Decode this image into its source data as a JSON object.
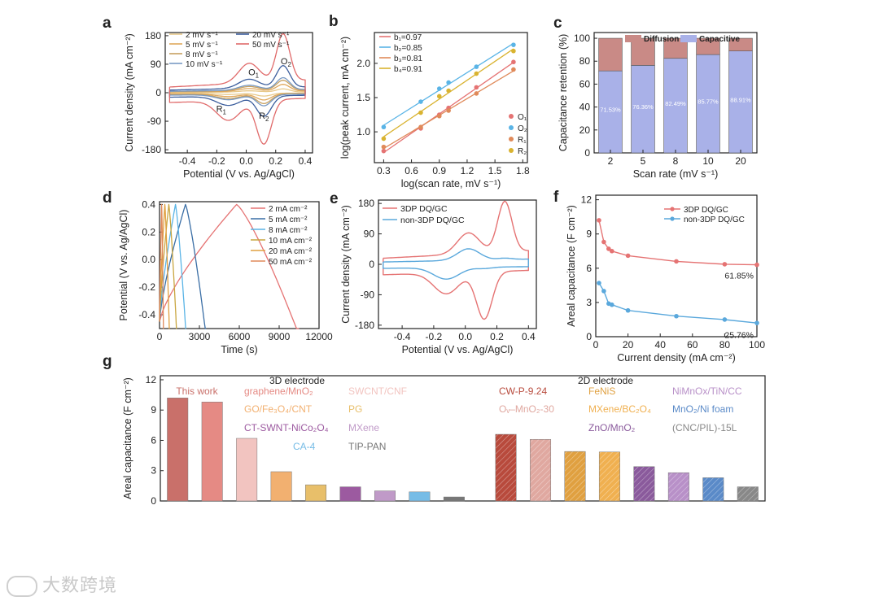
{
  "colors": {
    "axis": "#222222",
    "cv_scan": [
      "#e8c98a",
      "#e0a85c",
      "#c6a060",
      "#7a9ac4",
      "#3d5f9e",
      "#e06a6a"
    ],
    "b_fit": [
      "#e57373",
      "#5ab4e6",
      "#e08a5a",
      "#d9b330"
    ],
    "gcd": [
      "#e57373",
      "#3a6ea5",
      "#5ab4e6",
      "#c9a640",
      "#e0a040",
      "#e08a5a"
    ],
    "diffusion": "#c98a86",
    "capacitive": "#a9b1e8",
    "dq3d": "#e57373",
    "nondq": "#5aa8dc"
  },
  "watermark": "大数跨境",
  "chart_data": [
    {
      "panel": "a",
      "type": "line",
      "xlabel": "Potential (V vs. Ag/AgCl)",
      "ylabel": "Current density (mA cm⁻²)",
      "xlim": [
        -0.55,
        0.45
      ],
      "ylim": [
        -190,
        190
      ],
      "xticks": [
        "-0.4",
        "-0.2",
        "0.0",
        "0.2",
        "0.4"
      ],
      "xtick_values": [
        -0.4,
        -0.2,
        0,
        0.2,
        0.4
      ],
      "yticks": [
        "180",
        "90",
        "0",
        "-90",
        "-180"
      ],
      "ytick_values": [
        180,
        90,
        0,
        -90,
        -180
      ],
      "legend": [
        "2 mV s⁻¹",
        "5 mV s⁻¹",
        "8 mV s⁻¹",
        "10 mV s⁻¹",
        "20 mV s⁻¹",
        "50 mV s⁻¹"
      ],
      "scan_rates": [
        2,
        5,
        8,
        10,
        20,
        50
      ],
      "peaks": {
        "O1_x": 0.05,
        "O2_x": 0.25,
        "R1_x": -0.12,
        "R2_x": 0.12
      },
      "annotations": [
        "O1",
        "O2",
        "R1",
        "R2"
      ]
    },
    {
      "panel": "b",
      "type": "scatter",
      "xlabel": "log(scan rate, mV s⁻¹)",
      "ylabel": "log(peak current, mA cm⁻²)",
      "xlim": [
        0.2,
        1.85
      ],
      "ylim": [
        0.55,
        2.45
      ],
      "xticks": [
        "0.3",
        "0.6",
        "0.9",
        "1.2",
        "1.5",
        "1.8"
      ],
      "xtick_values": [
        0.3,
        0.6,
        0.9,
        1.2,
        1.5,
        1.8
      ],
      "yticks": [
        "1.0",
        "1.5",
        "2.0"
      ],
      "ytick_values": [
        1.0,
        1.5,
        2.0
      ],
      "x": [
        0.3,
        0.7,
        0.9,
        1.0,
        1.3,
        1.7
      ],
      "slopes": [
        "b₁=0.97",
        "b₂=0.85",
        "b₃=0.81",
        "b₄=0.91"
      ],
      "series": [
        {
          "name": "O₁",
          "values": [
            0.72,
            1.05,
            1.25,
            1.35,
            1.65,
            2.02
          ]
        },
        {
          "name": "O₂",
          "values": [
            1.07,
            1.44,
            1.63,
            1.72,
            1.95,
            2.27
          ]
        },
        {
          "name": "R₁",
          "values": [
            0.78,
            1.07,
            1.23,
            1.31,
            1.56,
            1.91
          ]
        },
        {
          "name": "R₂",
          "values": [
            0.9,
            1.28,
            1.52,
            1.6,
            1.85,
            2.18
          ]
        }
      ]
    },
    {
      "panel": "c",
      "type": "bar",
      "xlabel": "Scan rate (mV s⁻¹)",
      "ylabel": "Capacitance retention (%)",
      "ylim": [
        0,
        105
      ],
      "yticks": [
        "0",
        "20",
        "40",
        "60",
        "80",
        "100"
      ],
      "ytick_values": [
        0,
        20,
        40,
        60,
        80,
        100
      ],
      "categories": [
        "2",
        "5",
        "8",
        "10",
        "20"
      ],
      "series": [
        {
          "name": "Capacitive",
          "values": [
            71.53,
            76.36,
            82.49,
            85.77,
            88.91
          ]
        },
        {
          "name": "Diffusion",
          "values": [
            28.47,
            23.64,
            17.51,
            14.23,
            11.09
          ]
        }
      ],
      "labels": [
        "71.53%",
        "76.36%",
        "82.49%",
        "85.77%",
        "88.91%"
      ],
      "legend": [
        "Diffusion",
        "Capacitive"
      ]
    },
    {
      "panel": "d",
      "type": "line",
      "xlabel": "Time (s)",
      "ylabel": "Potential (V vs. Ag/AgCl)",
      "xlim": [
        0,
        12000
      ],
      "ylim": [
        -0.5,
        0.42
      ],
      "xticks": [
        "0",
        "3000",
        "6000",
        "9000",
        "12000"
      ],
      "xtick_values": [
        0,
        3000,
        6000,
        9000,
        12000
      ],
      "yticks": [
        "0.4",
        "0.2",
        "0.0",
        "-0.2",
        "-0.4"
      ],
      "ytick_values": [
        0.4,
        0.2,
        0,
        -0.2,
        -0.4
      ],
      "legend": [
        "2 mA cm⁻²",
        "5 mA cm⁻²",
        "8 mA cm⁻²",
        "10 mA cm⁻²",
        "20 mA cm⁻²",
        "50 mA cm⁻²"
      ],
      "charge_end_s": [
        5800,
        1950,
        1200,
        700,
        400,
        160
      ],
      "discharge_end_s": [
        10500,
        3500,
        2000,
        1300,
        750,
        300
      ]
    },
    {
      "panel": "e",
      "type": "line",
      "xlabel": "Potential (V vs. Ag/AgCl)",
      "ylabel": "Current density (mA cm⁻²)",
      "xlim": [
        -0.55,
        0.45
      ],
      "ylim": [
        -190,
        190
      ],
      "xticks": [
        "-0.4",
        "-0.2",
        "0.0",
        "0.2",
        "0.4"
      ],
      "xtick_values": [
        -0.4,
        -0.2,
        0,
        0.2,
        0.4
      ],
      "yticks": [
        "180",
        "90",
        "0",
        "-90",
        "-180"
      ],
      "ytick_values": [
        180,
        90,
        0,
        -90,
        -180
      ],
      "legend": [
        "3DP DQ/GC",
        "non-3DP DQ/GC"
      ]
    },
    {
      "panel": "f",
      "type": "line",
      "xlabel": "Current density (mA cm⁻²)",
      "ylabel": "Areal capacitance (F cm⁻²)",
      "xlim": [
        0,
        100
      ],
      "ylim": [
        0,
        12.4
      ],
      "xticks": [
        "0",
        "20",
        "40",
        "60",
        "80",
        "100"
      ],
      "xtick_values": [
        0,
        20,
        40,
        60,
        80,
        100
      ],
      "yticks": [
        "0",
        "3",
        "6",
        "9",
        "12"
      ],
      "ytick_values": [
        0,
        3,
        6,
        9,
        12
      ],
      "x": [
        2,
        5,
        8,
        10,
        20,
        50,
        80,
        100
      ],
      "series": [
        {
          "name": "3DP DQ/GC",
          "values": [
            10.2,
            8.3,
            7.7,
            7.5,
            7.1,
            6.6,
            6.35,
            6.3
          ]
        },
        {
          "name": "non-3DP DQ/GC",
          "values": [
            4.7,
            4.0,
            2.9,
            2.8,
            2.3,
            1.8,
            1.5,
            1.2
          ]
        }
      ],
      "annotations": [
        "61.85%",
        "25.76%"
      ]
    },
    {
      "panel": "g",
      "type": "bar",
      "ylabel": "Areal capacitance (F cm⁻²)",
      "ylim": [
        0,
        12.4
      ],
      "yticks": [
        "0",
        "3",
        "6",
        "9",
        "12"
      ],
      "ytick_values": [
        0,
        3,
        6,
        9,
        12
      ],
      "groups": [
        "3D electrode",
        "2D electrode"
      ],
      "categories": [
        "This work",
        "graphene/MnO₂",
        "SWCNT/CNF",
        "GO/Fe₃O₄/CNT",
        "PG",
        "CT-SWNT-NiCo₂O₄",
        "MXene",
        "CA-4",
        "TIP-PAN",
        "CW-P-9.24",
        "Oᵥ–MnO₂-30",
        "FeNiS",
        "MXene/BC₂O₄",
        "ZnO/MnO₂",
        "NiMnOx/TiN/CC",
        "MnO₂/Ni foam",
        "(CNC/PIL)-15L"
      ],
      "values": [
        10.2,
        9.8,
        6.2,
        2.9,
        1.6,
        1.4,
        1.0,
        0.9,
        0.4,
        6.6,
        6.1,
        4.9,
        4.85,
        3.4,
        2.8,
        2.3,
        1.4
      ],
      "bar_colors": [
        "#c9706a",
        "#e58a84",
        "#f2c4c0",
        "#f2b070",
        "#e8bf6a",
        "#9c5aa0",
        "#c09ac8",
        "#76bce6",
        "#777777",
        "#b84a3c",
        "#e0a8a0",
        "#e0a040",
        "#f0b050",
        "#8a5a9c",
        "#b890c8",
        "#5a8ac8",
        "#888888"
      ]
    }
  ],
  "panel_labels": [
    "a",
    "b",
    "c",
    "d",
    "e",
    "f",
    "g"
  ]
}
